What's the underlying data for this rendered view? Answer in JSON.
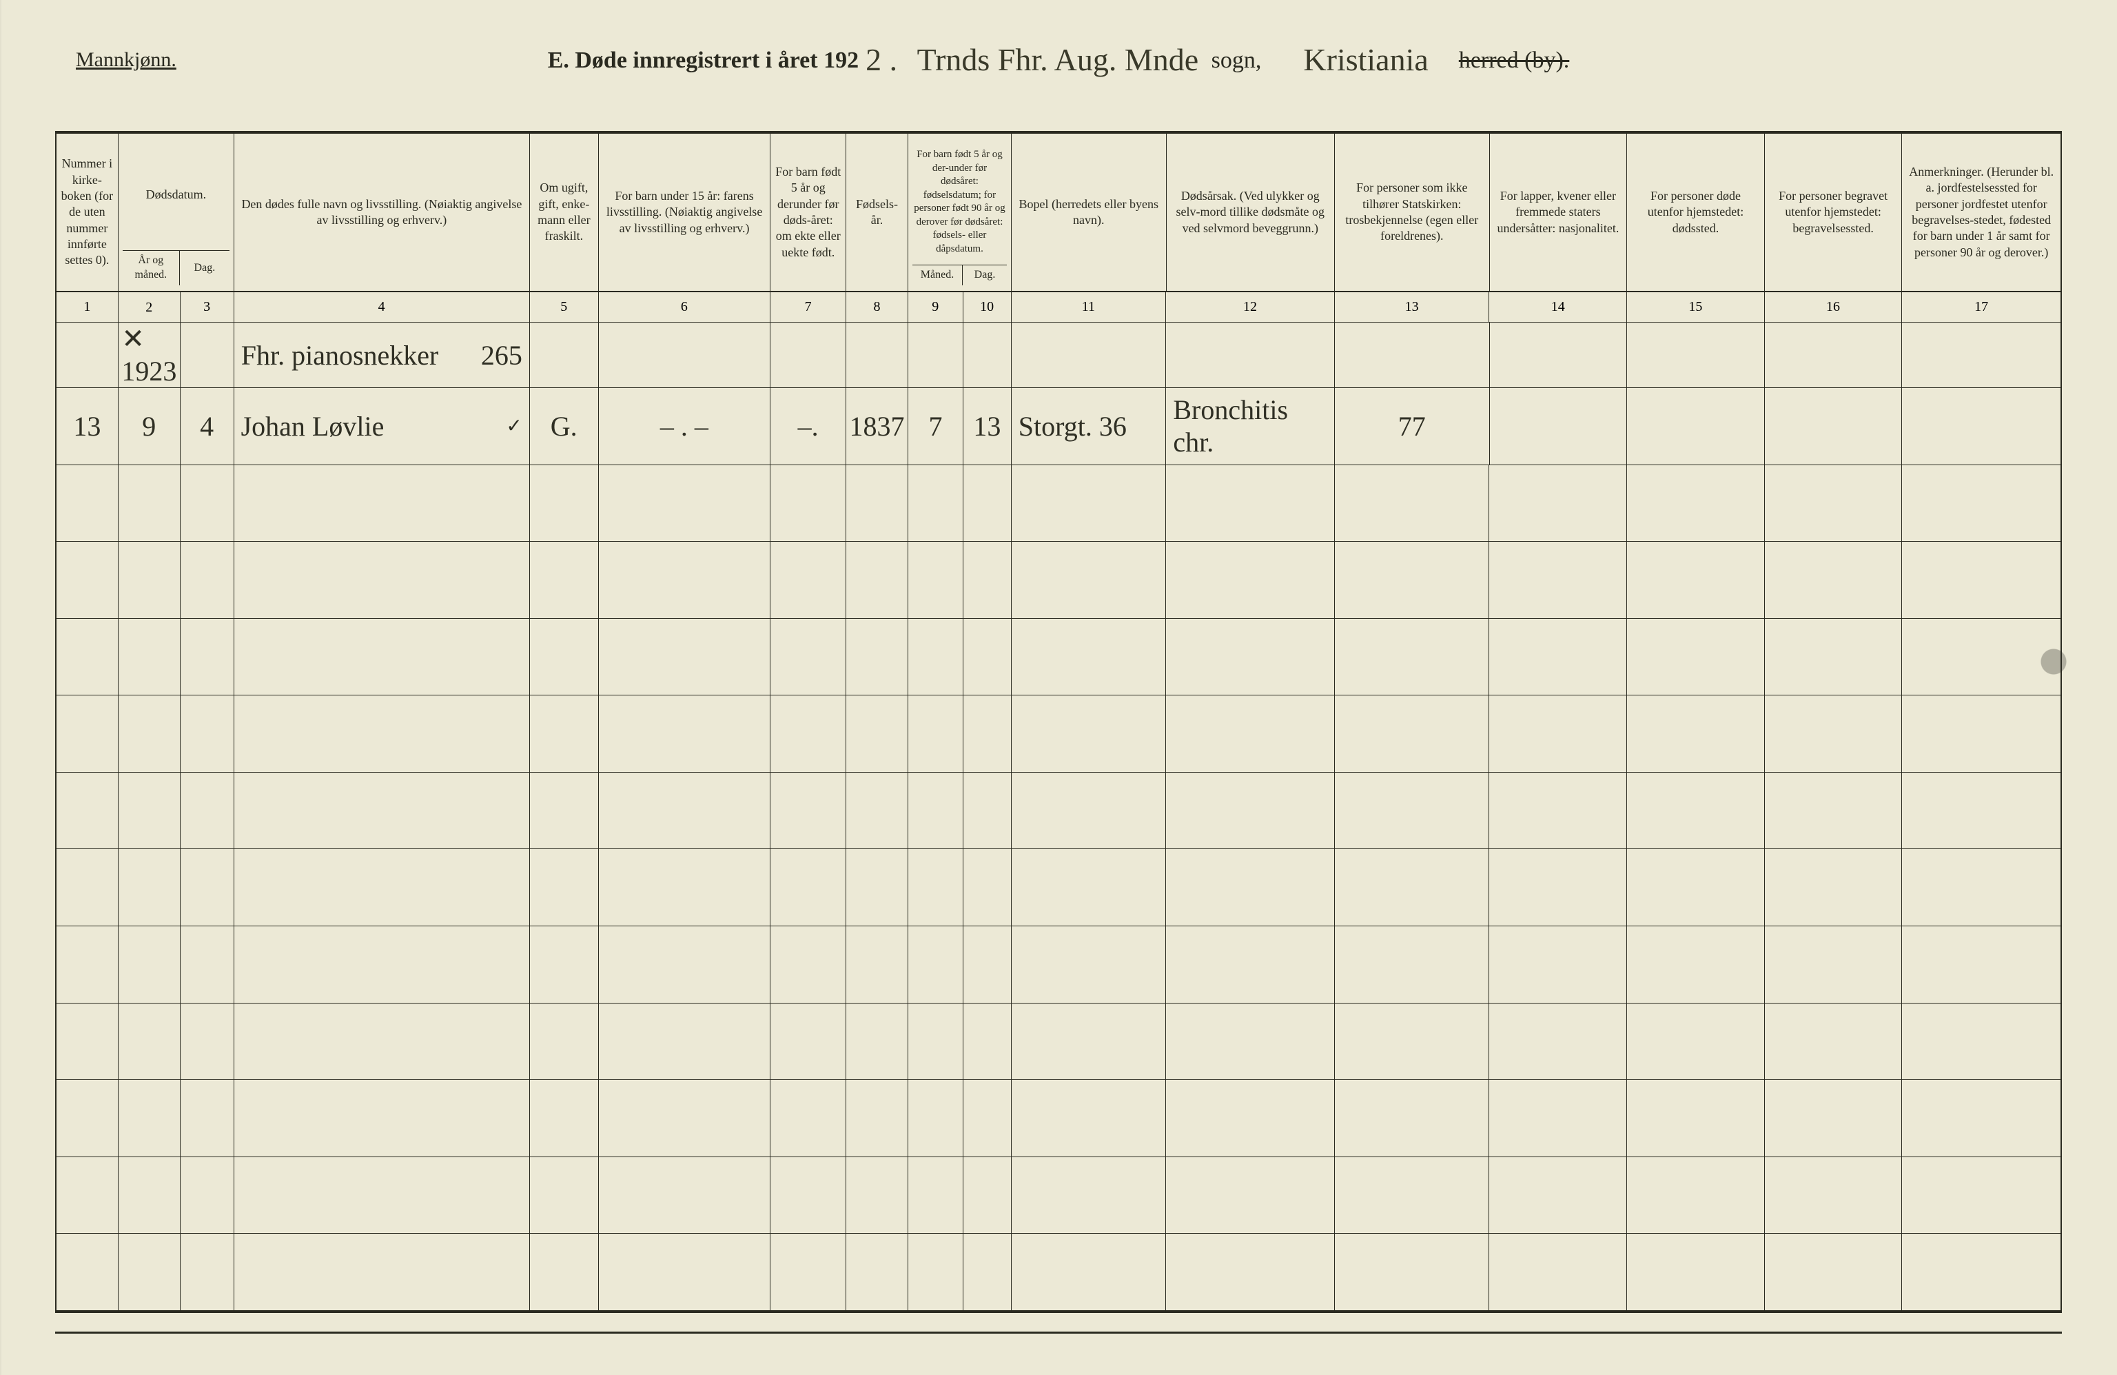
{
  "gender_heading": "Mannkjønn.",
  "title": {
    "prefix": "E.   Døde innregistrert i året 192",
    "year_suffix_handwritten": "2 .",
    "parish_handwritten": "Trnds Fhr. Aug. Mnde",
    "label_sogn": "sogn,",
    "herred_handwritten": "Kristiania",
    "label_herred": "herred (by).",
    "herred_struck": true
  },
  "columns": [
    {
      "num": "1",
      "head": "Nummer i kirke-boken (for de uten nummer innførte settes 0)."
    },
    {
      "num": "2",
      "head": "Dødsdatum.",
      "sub": "År og måned."
    },
    {
      "num": "3",
      "head": "",
      "sub": "Dag."
    },
    {
      "num": "4",
      "head": "Den dødes fulle navn og livsstilling. (Nøiaktig angivelse av livsstilling og erhverv.)"
    },
    {
      "num": "5",
      "head": "Om ugift, gift, enke-mann eller fraskilt."
    },
    {
      "num": "6",
      "head": "For barn under 15 år: farens livsstilling. (Nøiaktig angivelse av livsstilling og erhverv.)"
    },
    {
      "num": "7",
      "head": "For barn født 5 år og derunder før døds-året: om ekte eller uekte født."
    },
    {
      "num": "8",
      "head": "Fødsels-år."
    },
    {
      "num": "9",
      "head": "For barn født 5 år og der-under før dødsåret: fødselsdatum; for personer født 90 år og derover før dødsåret: fødsels- eller dåpsdatum.",
      "sub": "Måned."
    },
    {
      "num": "10",
      "head": "",
      "sub": "Dag."
    },
    {
      "num": "11",
      "head": "Bopel (herredets eller byens navn)."
    },
    {
      "num": "12",
      "head": "Dødsårsak. (Ved ulykker og selv-mord tillike dødsmåte og ved selvmord beveggrunn.)"
    },
    {
      "num": "13",
      "head": "For personer som ikke tilhører Statskirken: trosbekjennelse (egen eller foreldrenes)."
    },
    {
      "num": "14",
      "head": "For lapper, kvener eller fremmede staters undersåtter: nasjonalitet."
    },
    {
      "num": "15",
      "head": "For personer døde utenfor hjemstedet: dødssted."
    },
    {
      "num": "16",
      "head": "For personer begravet utenfor hjemstedet: begravelsessted."
    },
    {
      "num": "17",
      "head": "Anmerkninger. (Herunder bl. a. jordfestelsessted for personer jordfestet utenfor begravelses-stedet, fødested for barn under 1 år samt for personer 90 år og derover.)"
    }
  ],
  "colnum_2_note": "✕ 1923",
  "entry_line_above": {
    "c4": "Fhr. pianosnekker",
    "c4_right": "265"
  },
  "entries": [
    {
      "c1": "13",
      "c2": "9",
      "c3": "4",
      "c4": "Johan Løvlie",
      "c4_mark": "✓",
      "c5": "G.",
      "c6": "–   .   –",
      "c7": "–.",
      "c8": "1837",
      "c9": "7",
      "c10": "13",
      "c11": "Storgt. 36",
      "c12": "Bronchitis chr.",
      "c13": "77",
      "c14": "",
      "c15": "",
      "c16": "",
      "c17": ""
    }
  ],
  "empty_row_count": 11
}
